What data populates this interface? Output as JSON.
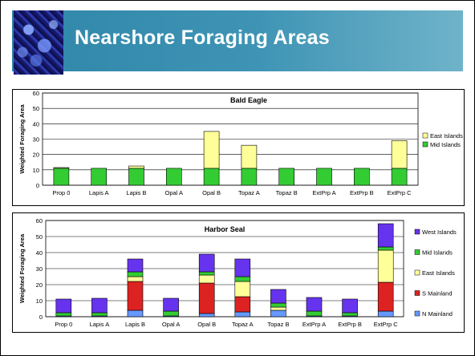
{
  "slide": {
    "title": "Nearshore Foraging Areas"
  },
  "colors": {
    "header": "#3a90b2",
    "west_islands": "#6633ee",
    "mid_islands": "#33cc33",
    "east_islands": "#ffff99",
    "s_mainland": "#dd2222",
    "n_mainland": "#6699ff"
  },
  "chart_data": [
    {
      "type": "bar",
      "stacked": true,
      "title": "Bald Eagle",
      "xlabel": "",
      "ylabel": "Weighted Foraging Area",
      "ylim": [
        0,
        60
      ],
      "yticks": [
        0,
        10,
        20,
        30,
        40,
        50,
        60
      ],
      "grid": true,
      "legend_position": "right",
      "categories": [
        "Prop 0",
        "Lapis A",
        "Lapis B",
        "Opal A",
        "Opal B",
        "Topaz A",
        "Topaz B",
        "ExtPrp A",
        "ExtPrp B",
        "ExtPrp C"
      ],
      "series": [
        {
          "name": "Mid Islands",
          "color": "#33cc33",
          "values": [
            11,
            11,
            11,
            11,
            11,
            11,
            11,
            11,
            11,
            11
          ]
        },
        {
          "name": "East Islands",
          "color": "#ffff99",
          "values": [
            0.5,
            0,
            1.5,
            0,
            24,
            15,
            0,
            0,
            0,
            18
          ]
        }
      ],
      "legend": [
        "East Islands",
        "Mid Islands"
      ]
    },
    {
      "type": "bar",
      "stacked": true,
      "title": "Harbor Seal",
      "xlabel": "",
      "ylabel": "Weighted Foraging Area",
      "ylim": [
        0,
        60
      ],
      "yticks": [
        0,
        10,
        20,
        30,
        40,
        50,
        60
      ],
      "grid": true,
      "legend_position": "right",
      "categories": [
        "Prop 0",
        "Lapis A",
        "Lapis B",
        "Opal A",
        "Opal B",
        "Topaz A",
        "Topaz B",
        "ExtPrp A",
        "ExtPrp B",
        "ExtPrp C"
      ],
      "series": [
        {
          "name": "N Mainland",
          "color": "#6699ff",
          "values": [
            0.5,
            0.5,
            4,
            0.5,
            2,
            3,
            4,
            0.5,
            0.5,
            3.5
          ]
        },
        {
          "name": "S Mainland",
          "color": "#dd2222",
          "values": [
            0,
            0,
            18,
            0,
            19,
            9.5,
            0,
            0,
            0,
            18
          ]
        },
        {
          "name": "East Islands",
          "color": "#ffff99",
          "values": [
            0,
            0,
            3,
            0,
            5,
            9.5,
            2,
            0,
            0,
            20
          ]
        },
        {
          "name": "Mid Islands",
          "color": "#33cc33",
          "values": [
            2,
            2,
            3,
            3,
            2,
            3,
            2.5,
            3,
            2,
            2
          ]
        },
        {
          "name": "West Islands",
          "color": "#6633ee",
          "values": [
            8.5,
            9,
            8,
            8,
            11,
            11,
            8.5,
            8.5,
            8.5,
            14.5
          ]
        }
      ],
      "legend": [
        "West Islands",
        "Mid Islands",
        "East Islands",
        "S Mainland",
        "N Mainland"
      ]
    }
  ]
}
